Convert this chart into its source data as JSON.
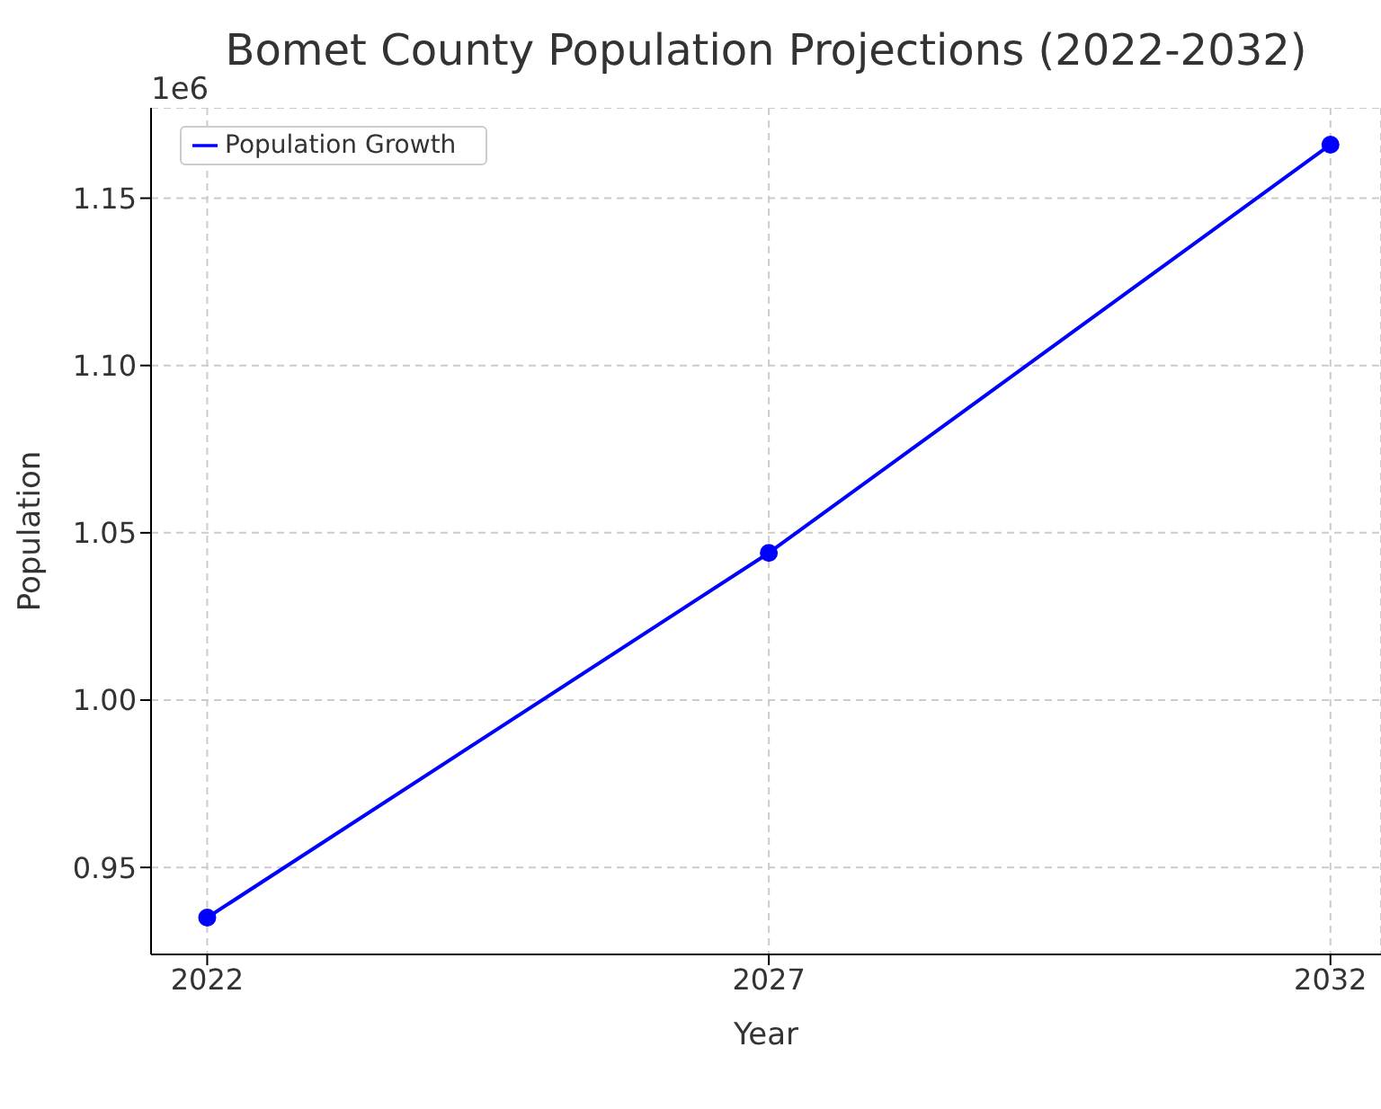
{
  "chart_data": {
    "type": "line",
    "title": "Bomet County Population Projections (2022-2032)",
    "xlabel": "Year",
    "ylabel": "Population",
    "x": [
      2022,
      2027,
      2032
    ],
    "series": [
      {
        "name": "Population Growth",
        "color": "#0000ff",
        "values": [
          0.935,
          1.044,
          1.166
        ]
      }
    ],
    "xlim": [
      2021.5,
      2032.45
    ],
    "xticks": [
      2022,
      2027,
      2032
    ],
    "ylim": [
      0.924,
      1.177
    ],
    "yticks": [
      0.95,
      {
        "value": 1,
        "label": "1.00"
      },
      1.05,
      {
        "value": 1.1,
        "label": "1.10"
      },
      1.15
    ],
    "annotations": [
      "1e6"
    ],
    "grid": true,
    "legend": "top left",
    "marker": "circle",
    "line_style": "solid"
  }
}
